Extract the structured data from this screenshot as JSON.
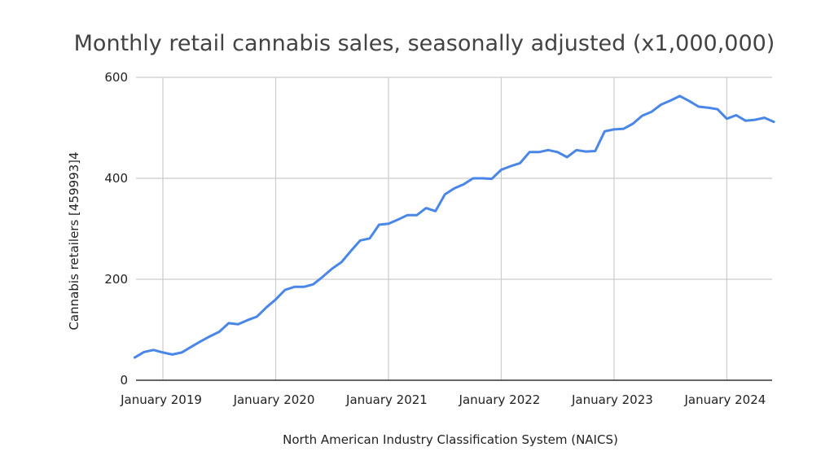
{
  "chart_data": {
    "type": "line",
    "title": "Monthly retail cannabis sales, seasonally adjusted (x1,000,000)",
    "xlabel": "North American Industry Classification System (NAICS)",
    "ylabel": "Cannabis retailers [459993]4",
    "ylim": [
      0,
      600
    ],
    "yticks": [
      0,
      200,
      400,
      600
    ],
    "grid": true,
    "legend": "none",
    "x_start": "2018-10",
    "x_end": "2024-06",
    "x_frequency": "monthly",
    "xticks": [
      {
        "label": "January 2019",
        "month_index": 3
      },
      {
        "label": "January 2020",
        "month_index": 15
      },
      {
        "label": "January 2021",
        "month_index": 27
      },
      {
        "label": "January 2022",
        "month_index": 39
      },
      {
        "label": "January 2023",
        "month_index": 51
      },
      {
        "label": "January 2024",
        "month_index": 63
      }
    ],
    "series": [
      {
        "name": "Cannabis retailers [459993]4",
        "color": "#4a86e8",
        "values": [
          45,
          56,
          60,
          55,
          51,
          55,
          66,
          77,
          87,
          96,
          113,
          111,
          119,
          126,
          144,
          160,
          179,
          185,
          185,
          190,
          205,
          221,
          234,
          256,
          277,
          281,
          308,
          310,
          318,
          327,
          327,
          341,
          335,
          368,
          380,
          388,
          400,
          400,
          399,
          417,
          424,
          430,
          452,
          452,
          456,
          452,
          442,
          456,
          453,
          454,
          493,
          497,
          498,
          508,
          524,
          532,
          546,
          554,
          563,
          553,
          542,
          540,
          537,
          518,
          525,
          514,
          516,
          520,
          512
        ]
      }
    ]
  }
}
